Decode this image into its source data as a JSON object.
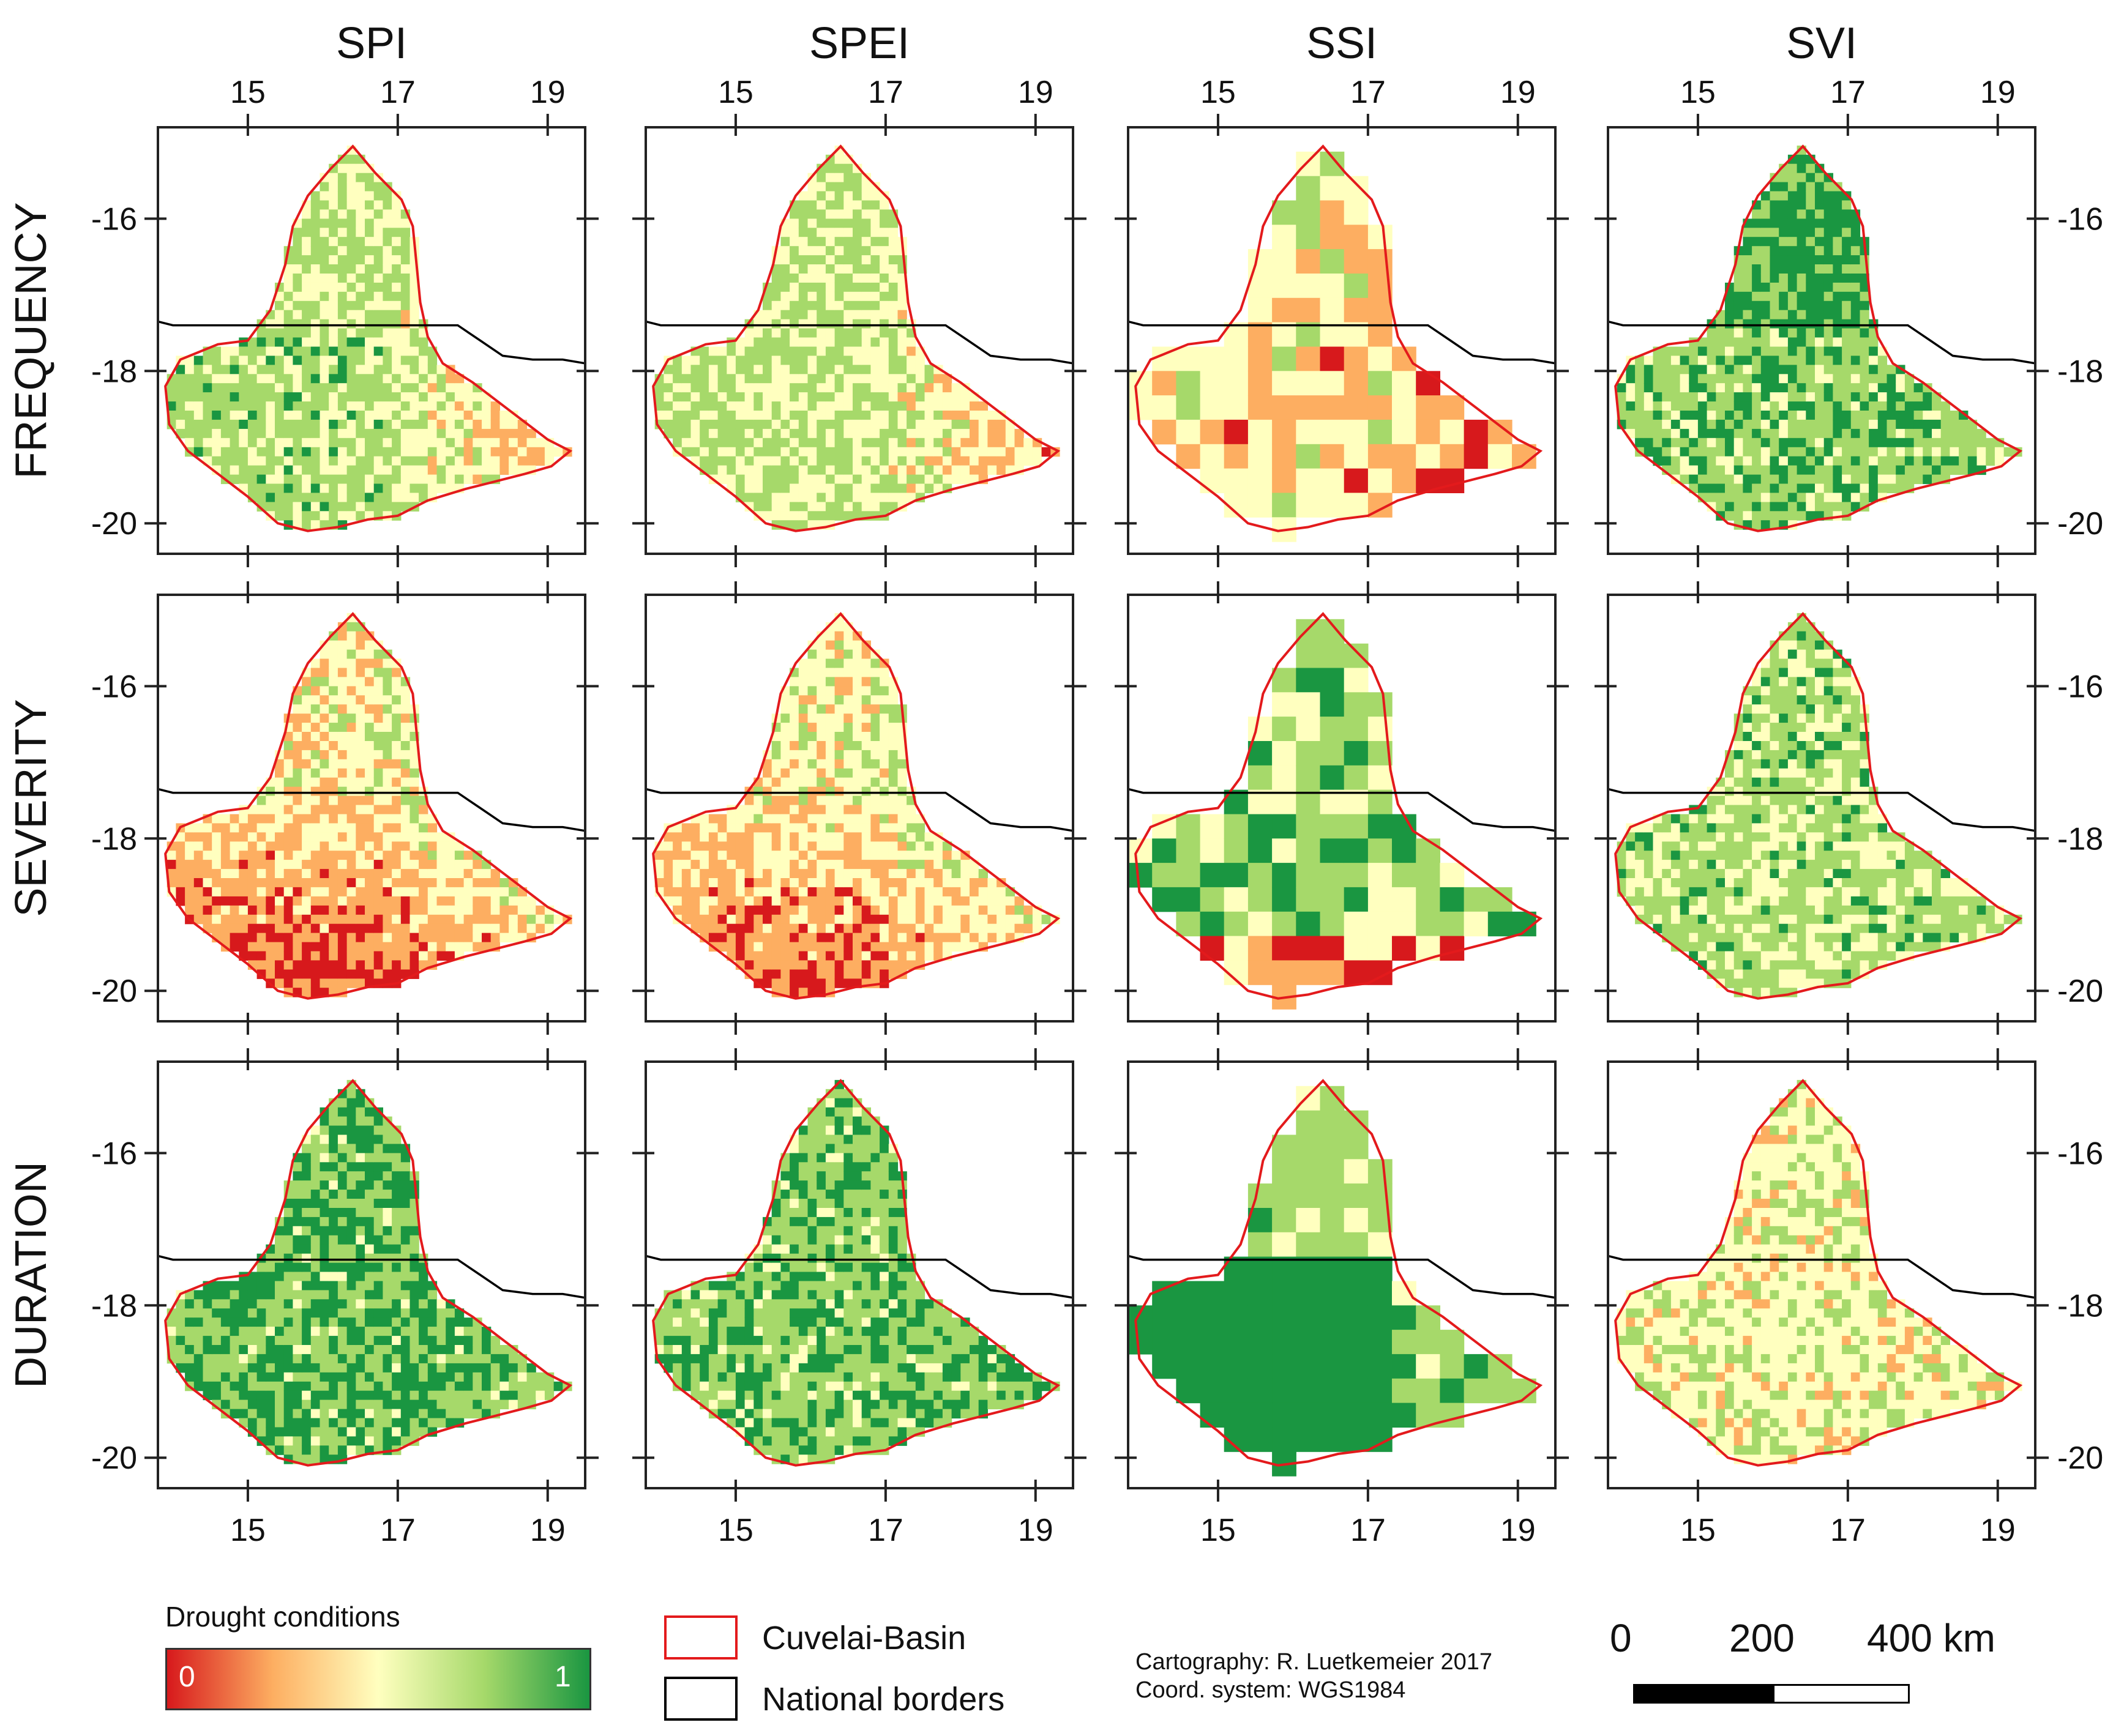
{
  "columns": [
    "SPI",
    "SPEI",
    "SSI",
    "SVI"
  ],
  "rows": [
    "FREQUENCY",
    "SEVERITY",
    "DURATION"
  ],
  "axes": {
    "x_ticks": [
      "15",
      "17",
      "19"
    ],
    "y_ticks": [
      "-16",
      "-18",
      "-20"
    ],
    "x_values": [
      15,
      17,
      19
    ],
    "y_values": [
      -16,
      -18,
      -20
    ],
    "lon_range": [
      13.8,
      19.5
    ],
    "lat_range": [
      -20.4,
      -14.8
    ]
  },
  "legend": {
    "title": "Drought conditions",
    "min_label": "0",
    "max_label": "1",
    "gradient": [
      "#d7191c",
      "#fdae61",
      "#ffffbf",
      "#a6d96a",
      "#1a9641"
    ]
  },
  "map_legend": {
    "basin_label": "Cuvelai-Basin",
    "border_label": "National borders",
    "basin_color": "#e31a1c",
    "border_color": "#000000"
  },
  "credits": {
    "cartography": "Cartography: R. Luetkemeier 2017",
    "coord_system": "Coord. system: WGS1984"
  },
  "scale_bar": {
    "labels": [
      "0",
      "200",
      "400 km"
    ],
    "values_km": [
      0,
      200,
      400
    ]
  },
  "colors": {
    "red": "#d7191c",
    "orange": "#fdae61",
    "yellow": "#ffffbf",
    "lightgreen": "#a6d96a",
    "green": "#1a9641"
  }
}
